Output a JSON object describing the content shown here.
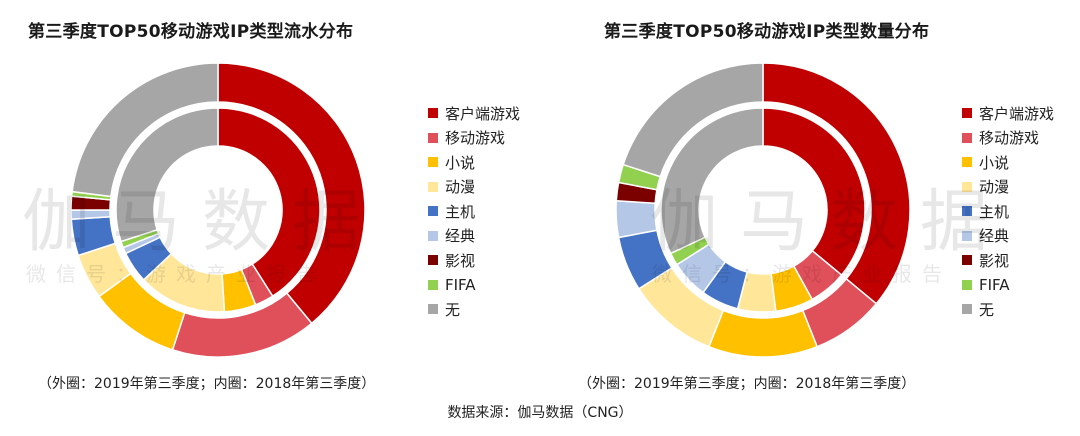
{
  "watermark": {
    "left_main": "伽马数据",
    "left_sub": "微信号：游戏产业报告",
    "right_main": "伽马数据",
    "right_sub": "微信号：游戏产业报告"
  },
  "chart_data": [
    {
      "type": "donut",
      "title": "第三季度TOP50移动游戏IP类型流水分布",
      "note": "（外圈：2019年第三季度；内圈：2018年第三季度）",
      "categories": [
        "客户端游戏",
        "移动游戏",
        "小说",
        "动漫",
        "主机",
        "经典",
        "影视",
        "FIFA",
        "无"
      ],
      "colors": [
        "#c00000",
        "#e0505a",
        "#ffc000",
        "#ffe699",
        "#4472c4",
        "#b4c7e7",
        "#7b0000",
        "#92d050",
        "#a6a6a6"
      ],
      "series": [
        {
          "name": "外圈：2019年第三季度",
          "values": [
            0.39,
            0.16,
            0.1,
            0.05,
            0.04,
            0.01,
            0.015,
            0.005,
            0.23
          ]
        },
        {
          "name": "内圈：2018年第三季度",
          "values": [
            0.41,
            0.03,
            0.05,
            0.14,
            0.05,
            0.01,
            0.0,
            0.01,
            0.3
          ]
        }
      ],
      "legend_position": "right"
    },
    {
      "type": "donut",
      "title": "第三季度TOP50移动游戏IP类型数量分布",
      "note": "（外圈：2019年第三季度；内圈：2018年第三季度）",
      "categories": [
        "客户端游戏",
        "移动游戏",
        "小说",
        "动漫",
        "主机",
        "经典",
        "影视",
        "FIFA",
        "无"
      ],
      "colors": [
        "#c00000",
        "#e0505a",
        "#ffc000",
        "#ffe699",
        "#4472c4",
        "#b4c7e7",
        "#7b0000",
        "#92d050",
        "#a6a6a6"
      ],
      "series": [
        {
          "name": "外圈：2019年第三季度",
          "values": [
            0.36,
            0.08,
            0.12,
            0.1,
            0.06,
            0.04,
            0.02,
            0.02,
            0.2
          ]
        },
        {
          "name": "内圈：2018年第三季度",
          "values": [
            0.36,
            0.06,
            0.06,
            0.06,
            0.06,
            0.06,
            0.0,
            0.02,
            0.32
          ]
        }
      ],
      "legend_position": "right"
    }
  ],
  "source": "数据来源：伽马数据（CNG）"
}
